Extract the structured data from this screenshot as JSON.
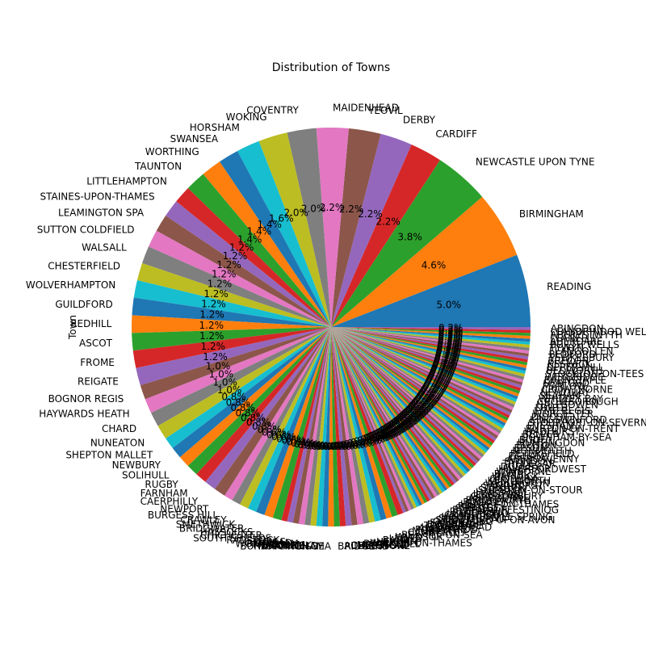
{
  "chart_data": {
    "type": "pie",
    "title": "Distribution of Towns",
    "ylabel": "Town",
    "start_angle_deg": 0,
    "direction": "counterclockwise",
    "palette": [
      "#1f77b4",
      "#ff7f0e",
      "#2ca02c",
      "#d62728",
      "#9467bd",
      "#8c564b",
      "#e377c2",
      "#7f7f7f",
      "#bcbd22",
      "#17becf"
    ],
    "slices": [
      {
        "label": "READING",
        "value": 5.0
      },
      {
        "label": "BIRMINGHAM",
        "value": 4.6
      },
      {
        "label": "NEWCASTLE UPON TYNE",
        "value": 3.8
      },
      {
        "label": "CARDIFF",
        "value": 2.2
      },
      {
        "label": "DERBY",
        "value": 2.2
      },
      {
        "label": "YEOVIL",
        "value": 2.2
      },
      {
        "label": "MAIDENHEAD",
        "value": 2.2
      },
      {
        "label": "COVENTRY",
        "value": 2.0
      },
      {
        "label": "WOKING",
        "value": 2.0
      },
      {
        "label": "HORSHAM",
        "value": 1.6
      },
      {
        "label": "SWANSEA",
        "value": 1.4
      },
      {
        "label": "WORTHING",
        "value": 1.4
      },
      {
        "label": "TAUNTON",
        "value": 1.4
      },
      {
        "label": "LITTLEHAMPTON",
        "value": 1.2
      },
      {
        "label": "STAINES-UPON-THAMES",
        "value": 1.2
      },
      {
        "label": "LEAMINGTON SPA",
        "value": 1.2
      },
      {
        "label": "SUTTON COLDFIELD",
        "value": 1.2
      },
      {
        "label": "WALSALL",
        "value": 1.2
      },
      {
        "label": "CHESTERFIELD",
        "value": 1.2
      },
      {
        "label": "WOLVERHAMPTON",
        "value": 1.2
      },
      {
        "label": "GUILDFORD",
        "value": 1.2
      },
      {
        "label": "REDHILL",
        "value": 1.2
      },
      {
        "label": "ASCOT",
        "value": 1.2
      },
      {
        "label": "FROME",
        "value": 1.2
      },
      {
        "label": "REIGATE",
        "value": 1.2
      },
      {
        "label": "BOGNOR REGIS",
        "value": 1.0
      },
      {
        "label": "HAYWARDS HEATH",
        "value": 1.0
      },
      {
        "label": "CHARD",
        "value": 1.0
      },
      {
        "label": "NUNEATON",
        "value": 1.0
      },
      {
        "label": "SHEPTON MALLET",
        "value": 0.8
      },
      {
        "label": "NEWBURY",
        "value": 0.8
      },
      {
        "label": "SOLIHULL",
        "value": 0.8
      },
      {
        "label": "RUGBY",
        "value": 0.8
      },
      {
        "label": "FARNHAM",
        "value": 0.8
      },
      {
        "label": "CAERPHILLY",
        "value": 0.8
      },
      {
        "label": "NEWPORT",
        "value": 0.8
      },
      {
        "label": "BURGESS HILL",
        "value": 0.6
      },
      {
        "label": "CRAWLEY",
        "value": 0.6
      },
      {
        "label": "SMETHWICK",
        "value": 0.6
      },
      {
        "label": "BRIDGWATER",
        "value": 0.6
      },
      {
        "label": "HASSOCKS",
        "value": 0.6
      },
      {
        "label": "CHICHESTER",
        "value": 0.6
      },
      {
        "label": "SOUTH SHIELDS",
        "value": 0.6
      },
      {
        "label": "RADSTOCK",
        "value": 0.4
      },
      {
        "label": "WELLS",
        "value": 0.4
      },
      {
        "label": "ASHTEAD",
        "value": 0.4
      },
      {
        "label": "WOKINGHAM",
        "value": 0.4
      },
      {
        "label": "THATCHAM",
        "value": 0.4
      },
      {
        "label": "MATLOCK",
        "value": 0.4
      },
      {
        "label": "DRONFIELD",
        "value": 0.4
      },
      {
        "label": "NOTTINGHAM",
        "value": 0.4
      },
      {
        "label": "BURNHAM-ON-SEA",
        "value": 0.4
      },
      {
        "label": "BRIDGEND",
        "value": 0.4
      },
      {
        "label": "ADDLESTONE",
        "value": 0.4
      },
      {
        "label": "CHEPSTOW",
        "value": 0.4
      },
      {
        "label": "MINEHEAD",
        "value": 0.4
      },
      {
        "label": "BRACKNELL",
        "value": 0.4
      },
      {
        "label": "WALTON-ON-THAMES",
        "value": 0.4
      },
      {
        "label": "HEXHAM",
        "value": 0.4
      },
      {
        "label": "BARRY",
        "value": 0.4
      },
      {
        "label": "LEWES",
        "value": 0.4
      },
      {
        "label": "WINDSOR",
        "value": 0.4
      },
      {
        "label": "BEXHILL-ON-SEA",
        "value": 0.4
      },
      {
        "label": "CAMBERLEY",
        "value": 0.4
      },
      {
        "label": "MORPETH",
        "value": 0.2
      },
      {
        "label": "PONTYPRIDD",
        "value": 0.2
      },
      {
        "label": "ALNWICK",
        "value": 0.2
      },
      {
        "label": "LEATHERHEAD",
        "value": 0.2
      },
      {
        "label": "TONBRIDGE",
        "value": 0.2
      },
      {
        "label": "DORKING",
        "value": 0.2
      },
      {
        "label": "EASTLEIGH",
        "value": 0.2
      },
      {
        "label": "GODALMING",
        "value": 0.2
      },
      {
        "label": "STRATFORD-UPON-AVON",
        "value": 0.2
      },
      {
        "label": "SUNDERLAND",
        "value": 0.2
      },
      {
        "label": "HOUGHTON LE SPRING",
        "value": 0.2
      },
      {
        "label": "CRANLEIGH",
        "value": 0.2
      },
      {
        "label": "LLANDUDNO",
        "value": 0.2
      },
      {
        "label": "PORTHCAWL",
        "value": 0.2
      },
      {
        "label": "BLAENAU FFESTINIOG",
        "value": 0.2
      },
      {
        "label": "CHERTSEY",
        "value": 0.2
      },
      {
        "label": "RIPLEY",
        "value": 0.2
      },
      {
        "label": "HENLEY-ON-THAMES",
        "value": 0.2
      },
      {
        "label": "BUCKLEY",
        "value": 0.2
      },
      {
        "label": "BRIDGNORTH",
        "value": 0.2
      },
      {
        "label": "ASHBOURNE",
        "value": 0.2
      },
      {
        "label": "GLASTONBURY",
        "value": 0.2
      },
      {
        "label": "ILKESTON",
        "value": 0.2
      },
      {
        "label": "HAILSHAM",
        "value": 0.2
      },
      {
        "label": "SHIPSTON-ON-STOUR",
        "value": 0.2
      },
      {
        "label": "STROUD",
        "value": 0.2
      },
      {
        "label": "SANDHURST",
        "value": 0.2
      },
      {
        "label": "WELLINGTON",
        "value": 0.2
      },
      {
        "label": "KENILWORTH",
        "value": 0.2
      },
      {
        "label": "OLDBURY",
        "value": 0.2
      },
      {
        "label": "WARWICK",
        "value": 0.2
      },
      {
        "label": "BLYTH",
        "value": 0.2
      },
      {
        "label": "WIMBORNE",
        "value": 0.2
      },
      {
        "label": "HAVERFORDWEST",
        "value": 0.2
      },
      {
        "label": "DUDLEY",
        "value": 0.2
      },
      {
        "label": "TREDEGAR",
        "value": 0.2
      },
      {
        "label": "SWINDON",
        "value": 0.2
      },
      {
        "label": "ABERGAVENNY",
        "value": 0.2
      },
      {
        "label": "EGHAM",
        "value": 0.2
      },
      {
        "label": "PETERSFIELD",
        "value": 0.2
      },
      {
        "label": "MONMOUTH",
        "value": 0.2
      },
      {
        "label": "EPSOM",
        "value": 0.2
      },
      {
        "label": "BUXTON",
        "value": 0.2
      },
      {
        "label": "HUNTINGDON",
        "value": 0.2
      },
      {
        "label": "BUDE",
        "value": 0.2
      },
      {
        "label": "DOWNHAM-BY-SEA",
        "value": 0.2
      },
      {
        "label": "BELPER",
        "value": 0.2
      },
      {
        "label": "WADHURST",
        "value": 0.2
      },
      {
        "label": "BURTON-ON-TRENT",
        "value": 0.2
      },
      {
        "label": "EVESHAM",
        "value": 0.2
      },
      {
        "label": "STOURPORT-ON-SEVERN",
        "value": 0.2
      },
      {
        "label": "KINGSWINFORD",
        "value": 0.2
      },
      {
        "label": "DIDCOT",
        "value": 0.2
      },
      {
        "label": "WORCESTER",
        "value": 0.2
      },
      {
        "label": "LYME REGIS",
        "value": 0.2
      },
      {
        "label": "LOUTH",
        "value": 0.2
      },
      {
        "label": "HALESOWEN",
        "value": 0.2
      },
      {
        "label": "CROWBOROUGH",
        "value": 0.2
      },
      {
        "label": "WHITLEY BAY",
        "value": 0.2
      },
      {
        "label": "SEAHAM",
        "value": 0.2
      },
      {
        "label": "NEWQUAY",
        "value": 0.2
      },
      {
        "label": "CROWTHORNE",
        "value": 0.2
      },
      {
        "label": "MARLOW",
        "value": 0.2
      },
      {
        "label": "SEAFORD",
        "value": 0.2
      },
      {
        "label": "BARNSTAPLE",
        "value": 0.2
      },
      {
        "label": "WEYBRIDGE",
        "value": 0.2
      },
      {
        "label": "STOCKTON-ON-TEES",
        "value": 0.2
      },
      {
        "label": "BEDWORTH",
        "value": 0.2
      },
      {
        "label": "UPPER-MILL",
        "value": 0.2
      },
      {
        "label": "KESWICK",
        "value": 0.2
      },
      {
        "label": "BRECON",
        "value": 0.2
      },
      {
        "label": "TEWKESBURY",
        "value": 0.2
      },
      {
        "label": "BEDFORD",
        "value": 0.2
      },
      {
        "label": "LLANGOLLEN",
        "value": 0.2
      },
      {
        "label": "TYWYN",
        "value": 0.2
      },
      {
        "label": "BUILTH WELLS",
        "value": 0.2
      },
      {
        "label": "ABERDARE",
        "value": 0.2
      },
      {
        "label": "LLANELLI",
        "value": 0.2
      },
      {
        "label": "ABERYSTWYTH",
        "value": 0.2
      },
      {
        "label": "LLANDRINDOD WELLS",
        "value": 0.2
      },
      {
        "label": "ABINGDON",
        "value": 0.2
      }
    ]
  }
}
